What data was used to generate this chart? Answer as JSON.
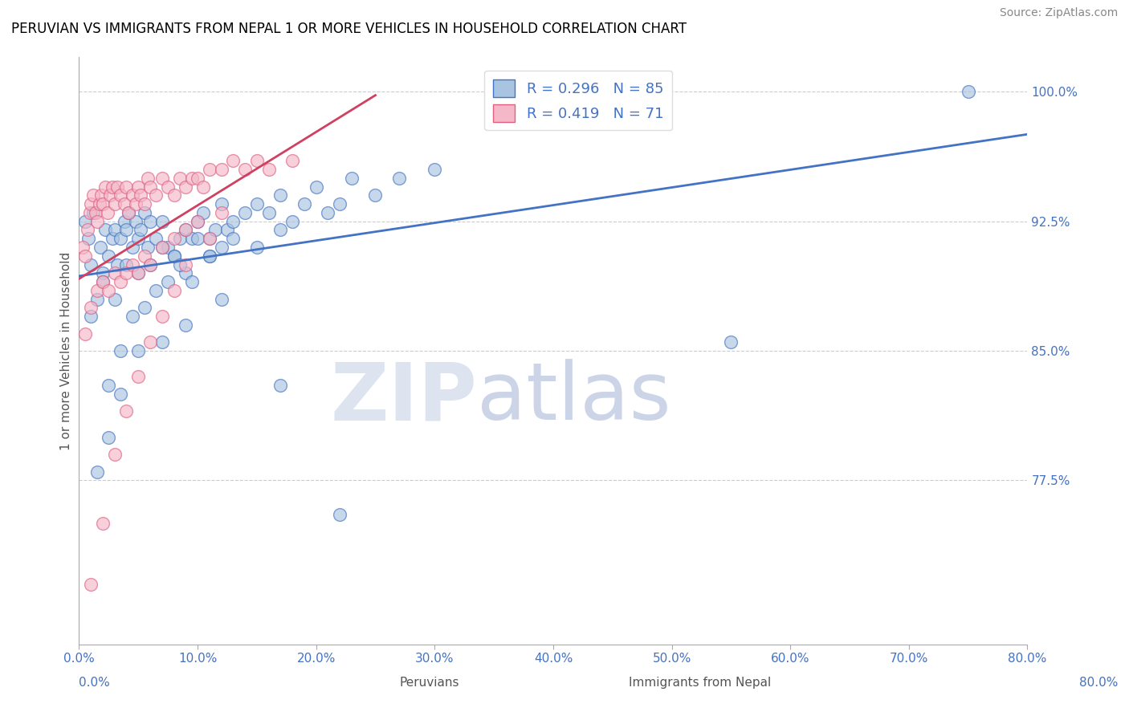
{
  "title": "PERUVIAN VS IMMIGRANTS FROM NEPAL 1 OR MORE VEHICLES IN HOUSEHOLD CORRELATION CHART",
  "source": "Source: ZipAtlas.com",
  "xlabel_peruvians": "Peruvians",
  "xlabel_nepal": "Immigrants from Nepal",
  "ylabel": "1 or more Vehicles in Household",
  "xlim": [
    0.0,
    80.0
  ],
  "ylim": [
    68.0,
    102.0
  ],
  "xtick_vals": [
    0,
    10,
    20,
    30,
    40,
    50,
    60,
    70,
    80
  ],
  "ytick_right_vals": [
    77.5,
    85.0,
    92.5,
    100.0
  ],
  "legend_R_blue": "R = 0.296",
  "legend_N_blue": "N = 85",
  "legend_R_pink": "R = 0.419",
  "legend_N_pink": "N = 71",
  "blue_fill": "#a8c4e0",
  "blue_edge": "#4472c4",
  "pink_fill": "#f4b8c8",
  "pink_edge": "#e06080",
  "blue_line": "#4472c4",
  "pink_line": "#d04060",
  "watermark_zip": "ZIP",
  "watermark_atlas": "atlas",
  "blue_x": [
    0.5,
    0.8,
    1.0,
    1.2,
    1.5,
    1.8,
    2.0,
    2.2,
    2.5,
    2.8,
    3.0,
    3.2,
    3.5,
    3.8,
    4.0,
    4.2,
    4.5,
    4.8,
    5.0,
    5.2,
    5.5,
    5.8,
    6.0,
    6.5,
    7.0,
    7.5,
    8.0,
    8.5,
    9.0,
    9.5,
    10.0,
    10.5,
    11.0,
    11.5,
    12.0,
    12.5,
    13.0,
    14.0,
    15.0,
    16.0,
    17.0,
    18.0,
    19.0,
    20.0,
    21.0,
    22.0,
    23.0,
    25.0,
    27.0,
    30.0,
    1.0,
    2.0,
    3.0,
    4.0,
    5.0,
    6.0,
    7.0,
    8.0,
    9.0,
    10.0,
    11.0,
    12.0,
    13.0,
    15.0,
    17.0,
    2.5,
    3.5,
    4.5,
    5.5,
    6.5,
    7.5,
    8.5,
    9.5,
    11.0,
    1.5,
    2.5,
    3.5,
    5.0,
    7.0,
    9.0,
    12.0,
    17.0,
    22.0,
    75.0,
    55.0
  ],
  "blue_y": [
    92.5,
    91.5,
    90.0,
    93.0,
    88.0,
    91.0,
    89.5,
    92.0,
    90.5,
    91.5,
    92.0,
    90.0,
    91.5,
    92.5,
    92.0,
    93.0,
    91.0,
    92.5,
    91.5,
    92.0,
    93.0,
    91.0,
    92.5,
    91.5,
    92.5,
    91.0,
    90.5,
    91.5,
    92.0,
    91.5,
    92.5,
    93.0,
    91.5,
    92.0,
    93.5,
    92.0,
    91.5,
    93.0,
    93.5,
    93.0,
    94.0,
    92.5,
    93.5,
    94.5,
    93.0,
    93.5,
    95.0,
    94.0,
    95.0,
    95.5,
    87.0,
    89.0,
    88.0,
    90.0,
    89.5,
    90.0,
    91.0,
    90.5,
    89.5,
    91.5,
    90.5,
    91.0,
    92.5,
    91.0,
    92.0,
    83.0,
    85.0,
    87.0,
    87.5,
    88.5,
    89.0,
    90.0,
    89.0,
    90.5,
    78.0,
    80.0,
    82.5,
    85.0,
    85.5,
    86.5,
    88.0,
    83.0,
    75.5,
    100.0,
    85.5
  ],
  "pink_x": [
    0.3,
    0.5,
    0.7,
    0.9,
    1.0,
    1.2,
    1.4,
    1.5,
    1.7,
    1.9,
    2.0,
    2.2,
    2.4,
    2.6,
    2.8,
    3.0,
    3.2,
    3.5,
    3.8,
    4.0,
    4.2,
    4.5,
    4.8,
    5.0,
    5.2,
    5.5,
    5.8,
    6.0,
    6.5,
    7.0,
    7.5,
    8.0,
    8.5,
    9.0,
    9.5,
    10.0,
    10.5,
    11.0,
    12.0,
    13.0,
    14.0,
    15.0,
    16.0,
    18.0,
    0.5,
    1.0,
    1.5,
    2.0,
    2.5,
    3.0,
    3.5,
    4.0,
    4.5,
    5.0,
    5.5,
    6.0,
    7.0,
    8.0,
    9.0,
    10.0,
    11.0,
    12.0,
    1.0,
    2.0,
    3.0,
    4.0,
    5.0,
    6.0,
    7.0,
    8.0,
    9.0
  ],
  "pink_y": [
    91.0,
    90.5,
    92.0,
    93.0,
    93.5,
    94.0,
    93.0,
    92.5,
    93.5,
    94.0,
    93.5,
    94.5,
    93.0,
    94.0,
    94.5,
    93.5,
    94.5,
    94.0,
    93.5,
    94.5,
    93.0,
    94.0,
    93.5,
    94.5,
    94.0,
    93.5,
    95.0,
    94.5,
    94.0,
    95.0,
    94.5,
    94.0,
    95.0,
    94.5,
    95.0,
    95.0,
    94.5,
    95.5,
    95.5,
    96.0,
    95.5,
    96.0,
    95.5,
    96.0,
    86.0,
    87.5,
    88.5,
    89.0,
    88.5,
    89.5,
    89.0,
    89.5,
    90.0,
    89.5,
    90.5,
    90.0,
    91.0,
    91.5,
    92.0,
    92.5,
    91.5,
    93.0,
    71.5,
    75.0,
    79.0,
    81.5,
    83.5,
    85.5,
    87.0,
    88.5,
    90.0
  ]
}
